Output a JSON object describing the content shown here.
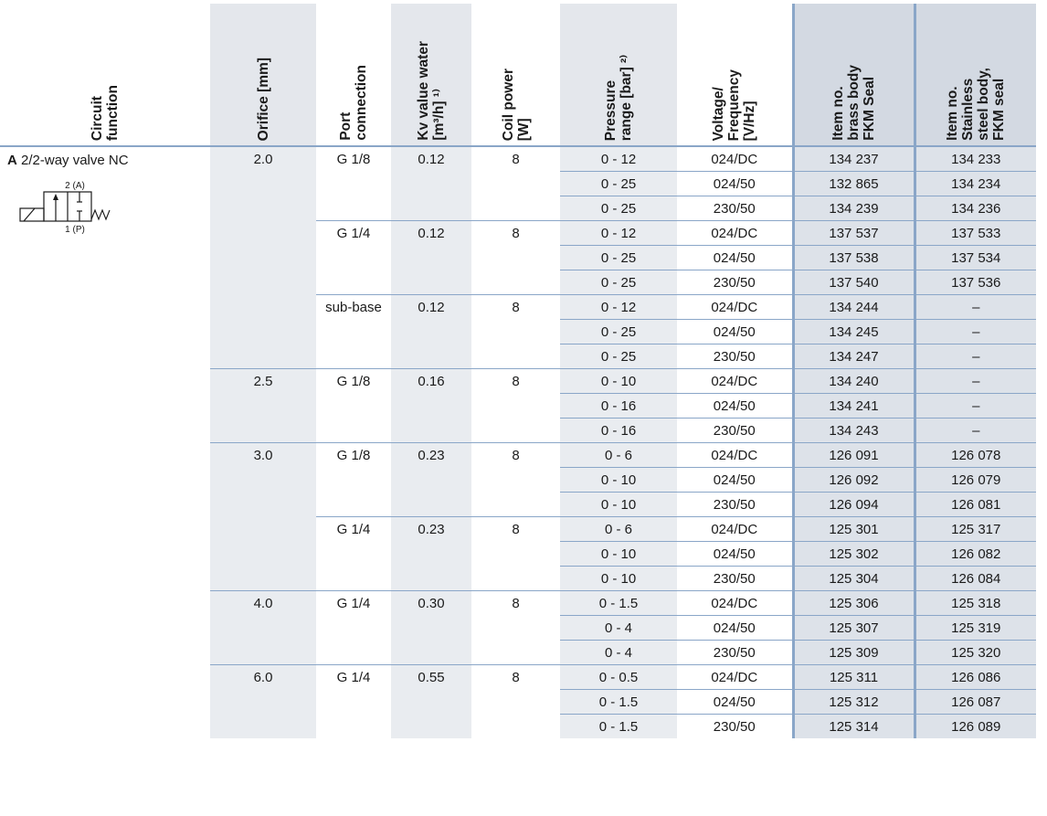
{
  "headers": [
    {
      "key": "circuit",
      "label": "Circuit\nfunction"
    },
    {
      "key": "orifice",
      "label": "Orifice [mm]"
    },
    {
      "key": "port",
      "label": "Port\nconnection"
    },
    {
      "key": "kv",
      "label": "Kv value water\n[m³/h] ¹⁾"
    },
    {
      "key": "coil",
      "label": "Coil power\n[W]"
    },
    {
      "key": "pressure",
      "label": "Pressure\nrange [bar] ²⁾"
    },
    {
      "key": "voltage",
      "label": "Voltage/\nFrequency\n[V/Hz]"
    },
    {
      "key": "item_brass",
      "label": "Item no.\nbrass body\nFKM Seal"
    },
    {
      "key": "item_ss",
      "label": "Item no.\nStainless\nsteel body,\nFKM seal"
    }
  ],
  "circuit": {
    "letter": "A",
    "description": "2/2-way valve NC",
    "symbol_labels": {
      "top": "2 (A)",
      "bottom": "1 (P)"
    }
  },
  "orifice_groups": [
    {
      "orifice": "2.0",
      "ports": [
        {
          "port": "G 1/8",
          "kv": "0.12",
          "coil": "8",
          "rows": [
            {
              "pressure": "0 - 12",
              "voltage": "024/DC",
              "brass": "134 237",
              "ss": "134 233"
            },
            {
              "pressure": "0 - 25",
              "voltage": "024/50",
              "brass": "132 865",
              "ss": "134 234"
            },
            {
              "pressure": "0 - 25",
              "voltage": "230/50",
              "brass": "134 239",
              "ss": "134 236"
            }
          ]
        },
        {
          "port": "G 1/4",
          "kv": "0.12",
          "coil": "8",
          "rows": [
            {
              "pressure": "0 - 12",
              "voltage": "024/DC",
              "brass": "137 537",
              "ss": "137 533"
            },
            {
              "pressure": "0 - 25",
              "voltage": "024/50",
              "brass": "137 538",
              "ss": "137 534"
            },
            {
              "pressure": "0 - 25",
              "voltage": "230/50",
              "brass": "137 540",
              "ss": "137 536"
            }
          ]
        },
        {
          "port": "sub-base",
          "kv": "0.12",
          "coil": "8",
          "rows": [
            {
              "pressure": "0 - 12",
              "voltage": "024/DC",
              "brass": "134 244",
              "ss": "–"
            },
            {
              "pressure": "0 - 25",
              "voltage": "024/50",
              "brass": "134 245",
              "ss": "–"
            },
            {
              "pressure": "0 - 25",
              "voltage": "230/50",
              "brass": "134 247",
              "ss": "–"
            }
          ]
        }
      ]
    },
    {
      "orifice": "2.5",
      "ports": [
        {
          "port": "G 1/8",
          "kv": "0.16",
          "coil": "8",
          "rows": [
            {
              "pressure": "0 - 10",
              "voltage": "024/DC",
              "brass": "134 240",
              "ss": "–"
            },
            {
              "pressure": "0 - 16",
              "voltage": "024/50",
              "brass": "134 241",
              "ss": "–"
            },
            {
              "pressure": "0 - 16",
              "voltage": "230/50",
              "brass": "134 243",
              "ss": "–"
            }
          ]
        }
      ]
    },
    {
      "orifice": "3.0",
      "ports": [
        {
          "port": "G 1/8",
          "kv": "0.23",
          "coil": "8",
          "rows": [
            {
              "pressure": "0 - 6",
              "voltage": "024/DC",
              "brass": "126 091",
              "ss": "126 078"
            },
            {
              "pressure": "0 - 10",
              "voltage": "024/50",
              "brass": "126 092",
              "ss": "126 079"
            },
            {
              "pressure": "0 - 10",
              "voltage": "230/50",
              "brass": "126 094",
              "ss": "126 081"
            }
          ]
        },
        {
          "port": "G 1/4",
          "kv": "0.23",
          "coil": "8",
          "rows": [
            {
              "pressure": "0 - 6",
              "voltage": "024/DC",
              "brass": "125 301",
              "ss": "125 317"
            },
            {
              "pressure": "0 - 10",
              "voltage": "024/50",
              "brass": "125 302",
              "ss": "126 082"
            },
            {
              "pressure": "0 - 10",
              "voltage": "230/50",
              "brass": "125 304",
              "ss": "126 084"
            }
          ]
        }
      ]
    },
    {
      "orifice": "4.0",
      "ports": [
        {
          "port": "G 1/4",
          "kv": "0.30",
          "coil": "8",
          "rows": [
            {
              "pressure": "0 - 1.5",
              "voltage": "024/DC",
              "brass": "125 306",
              "ss": "125 318"
            },
            {
              "pressure": "0 - 4",
              "voltage": "024/50",
              "brass": "125 307",
              "ss": "125 319"
            },
            {
              "pressure": "0 - 4",
              "voltage": "230/50",
              "brass": "125 309",
              "ss": "125 320"
            }
          ]
        }
      ]
    },
    {
      "orifice": "6.0",
      "ports": [
        {
          "port": "G 1/4",
          "kv": "0.55",
          "coil": "8",
          "rows": [
            {
              "pressure": "0 - 0.5",
              "voltage": "024/DC",
              "brass": "125 311",
              "ss": "126 086"
            },
            {
              "pressure": "0 - 1.5",
              "voltage": "024/50",
              "brass": "125 312",
              "ss": "126 087"
            },
            {
              "pressure": "0 - 1.5",
              "voltage": "230/50",
              "brass": "125 314",
              "ss": "126 089"
            }
          ]
        }
      ]
    }
  ],
  "colors": {
    "accent_border": "#8aa6c8",
    "gray_column": "#e9ecf0",
    "item_column": "#dde2e9"
  }
}
